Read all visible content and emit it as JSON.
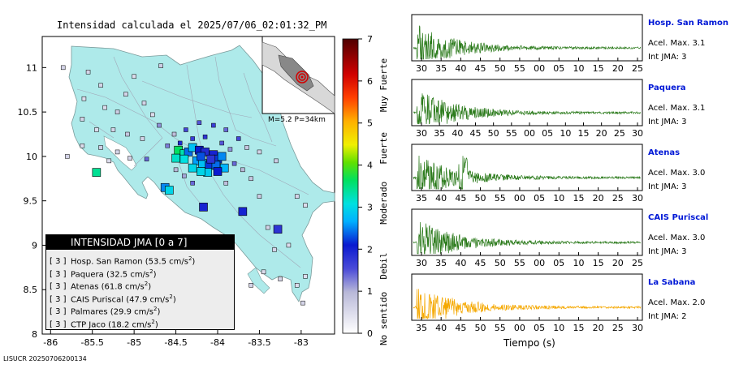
{
  "map": {
    "title": "Intensidad calculada el 2025/07/06_02:01:32_PM",
    "lon_ticks": [
      "-86",
      "-85.5",
      "-85",
      "-84.5",
      "-84",
      "-83.5",
      "-83"
    ],
    "lat_ticks": [
      "11",
      "10.5",
      "10",
      "9.5",
      "9",
      "8.5",
      "8"
    ],
    "lon_range": [
      -86.1,
      -82.6
    ],
    "lat_range": [
      8.0,
      11.35
    ],
    "inset_label": "M=5.2 P=34km",
    "legend": {
      "title": "INTENSIDAD JMA [0 a 7]",
      "entries": [
        {
          "grade": "[ 3 ]",
          "station": "Hosp. San Ramon",
          "pga": "(53.5 cm/s",
          "sup": "2",
          ")": ")"
        },
        {
          "grade": "[ 3 ]",
          "station": "Paquera",
          "pga": "(32.5 cm/s",
          "sup": "2",
          ")": ")"
        },
        {
          "grade": "[ 3 ]",
          "station": "Atenas",
          "pga": "(61.8 cm/s",
          "sup": "2",
          ")": ")"
        },
        {
          "grade": "[ 3 ]",
          "station": "CAIS Puriscal",
          "pga": "(47.9 cm/s",
          "sup": "2",
          ")": ")"
        },
        {
          "grade": "[ 3 ]",
          "station": "Palmares",
          "pga": "(29.9 cm/s",
          "sup": "2",
          ")": ")"
        },
        {
          "grade": "[ 3 ]",
          "station": "CTP Jaco",
          "pga": "(18.2 cm/s",
          "sup": "2",
          ")": ")"
        }
      ]
    },
    "colorbar": {
      "ticks": [
        "0",
        "1",
        "2",
        "3",
        "4",
        "5",
        "6",
        "7"
      ],
      "labels": [
        "No sentido",
        "Debil",
        "Moderado",
        "Fuerte",
        "Muy Fuerte"
      ]
    },
    "footer": "LISUCR 20250706200134"
  },
  "stations_big": [
    {
      "lon": -84.47,
      "lat": 10.07,
      "i": 3.6
    },
    {
      "lon": -84.4,
      "lat": 10.03,
      "i": 3.3
    },
    {
      "lon": -84.35,
      "lat": 10.05,
      "i": 2.4
    },
    {
      "lon": -84.3,
      "lat": 10.1,
      "i": 2.8
    },
    {
      "lon": -84.22,
      "lat": 10.07,
      "i": 2.1
    },
    {
      "lon": -84.15,
      "lat": 10.05,
      "i": 1.9
    },
    {
      "lon": -84.05,
      "lat": 10.02,
      "i": 2.0
    },
    {
      "lon": -84.0,
      "lat": 9.97,
      "i": 2.2
    },
    {
      "lon": -83.95,
      "lat": 10.0,
      "i": 2.5
    },
    {
      "lon": -84.25,
      "lat": 9.95,
      "i": 2.6
    },
    {
      "lon": -84.18,
      "lat": 9.92,
      "i": 2.8
    },
    {
      "lon": -84.1,
      "lat": 9.9,
      "i": 2.2
    },
    {
      "lon": -84.02,
      "lat": 9.9,
      "i": 2.4
    },
    {
      "lon": -83.92,
      "lat": 9.87,
      "i": 2.7
    },
    {
      "lon": -84.3,
      "lat": 9.87,
      "i": 3.0
    },
    {
      "lon": -84.4,
      "lat": 9.97,
      "i": 3.1
    },
    {
      "lon": -84.5,
      "lat": 9.98,
      "i": 3.2
    },
    {
      "lon": -84.12,
      "lat": 9.82,
      "i": 2.9
    },
    {
      "lon": -84.2,
      "lat": 9.83,
      "i": 3.0
    },
    {
      "lon": -84.0,
      "lat": 9.83,
      "i": 2.1
    },
    {
      "lon": -84.08,
      "lat": 9.97,
      "i": 1.8
    },
    {
      "lon": -84.2,
      "lat": 10.0,
      "i": 2.3
    },
    {
      "lon": -85.45,
      "lat": 9.82,
      "i": 3.4
    },
    {
      "lon": -84.63,
      "lat": 9.65,
      "i": 2.5
    },
    {
      "lon": -84.58,
      "lat": 9.62,
      "i": 3.0
    },
    {
      "lon": -84.17,
      "lat": 9.43,
      "i": 2.0
    },
    {
      "lon": -83.7,
      "lat": 9.38,
      "i": 2.0
    },
    {
      "lon": -83.28,
      "lat": 9.18,
      "i": 1.8
    }
  ],
  "stations_small": [
    {
      "lon": -85.85,
      "lat": 11.0,
      "i": 0.6
    },
    {
      "lon": -85.0,
      "lat": 10.9,
      "i": 0.5
    },
    {
      "lon": -85.55,
      "lat": 10.95,
      "i": 0.6
    },
    {
      "lon": -84.68,
      "lat": 11.02,
      "i": 0.7
    },
    {
      "lon": -85.4,
      "lat": 10.8,
      "i": 0.6
    },
    {
      "lon": -85.1,
      "lat": 10.7,
      "i": 0.6
    },
    {
      "lon": -85.6,
      "lat": 10.65,
      "i": 0.5
    },
    {
      "lon": -85.35,
      "lat": 10.55,
      "i": 0.5
    },
    {
      "lon": -85.2,
      "lat": 10.5,
      "i": 0.7
    },
    {
      "lon": -84.88,
      "lat": 10.6,
      "i": 0.6
    },
    {
      "lon": -84.78,
      "lat": 10.47,
      "i": 0.5
    },
    {
      "lon": -85.62,
      "lat": 10.42,
      "i": 0.6
    },
    {
      "lon": -85.45,
      "lat": 10.3,
      "i": 0.5
    },
    {
      "lon": -85.25,
      "lat": 10.3,
      "i": 0.6
    },
    {
      "lon": -85.62,
      "lat": 10.12,
      "i": 0.5
    },
    {
      "lon": -85.8,
      "lat": 10.0,
      "i": 0.6
    },
    {
      "lon": -85.4,
      "lat": 10.1,
      "i": 0.7
    },
    {
      "lon": -85.08,
      "lat": 10.25,
      "i": 0.8
    },
    {
      "lon": -84.9,
      "lat": 10.2,
      "i": 0.6
    },
    {
      "lon": -85.2,
      "lat": 10.05,
      "i": 0.6
    },
    {
      "lon": -85.3,
      "lat": 9.95,
      "i": 0.5
    },
    {
      "lon": -85.05,
      "lat": 9.98,
      "i": 0.6
    },
    {
      "lon": -84.85,
      "lat": 9.97,
      "i": 1.4
    },
    {
      "lon": -84.7,
      "lat": 10.35,
      "i": 1.2
    },
    {
      "lon": -84.52,
      "lat": 10.25,
      "i": 0.9
    },
    {
      "lon": -84.38,
      "lat": 10.3,
      "i": 1.6
    },
    {
      "lon": -84.22,
      "lat": 10.38,
      "i": 1.5
    },
    {
      "lon": -84.05,
      "lat": 10.35,
      "i": 1.7
    },
    {
      "lon": -83.9,
      "lat": 10.3,
      "i": 1.4
    },
    {
      "lon": -83.75,
      "lat": 10.2,
      "i": 1.6
    },
    {
      "lon": -83.65,
      "lat": 10.1,
      "i": 0.8
    },
    {
      "lon": -83.5,
      "lat": 10.05,
      "i": 0.6
    },
    {
      "lon": -83.3,
      "lat": 9.95,
      "i": 0.7
    },
    {
      "lon": -84.6,
      "lat": 10.12,
      "i": 1.3
    },
    {
      "lon": -84.45,
      "lat": 10.15,
      "i": 1.9
    },
    {
      "lon": -84.3,
      "lat": 10.2,
      "i": 1.7
    },
    {
      "lon": -84.15,
      "lat": 10.22,
      "i": 1.8
    },
    {
      "lon": -83.95,
      "lat": 10.15,
      "i": 1.5
    },
    {
      "lon": -83.85,
      "lat": 10.08,
      "i": 1.2
    },
    {
      "lon": -83.8,
      "lat": 9.92,
      "i": 1.4
    },
    {
      "lon": -83.7,
      "lat": 9.85,
      "i": 1.0
    },
    {
      "lon": -83.6,
      "lat": 9.75,
      "i": 0.8
    },
    {
      "lon": -83.05,
      "lat": 9.55,
      "i": 0.6
    },
    {
      "lon": -82.95,
      "lat": 9.45,
      "i": 0.5
    },
    {
      "lon": -84.5,
      "lat": 9.85,
      "i": 1.0
    },
    {
      "lon": -84.4,
      "lat": 9.78,
      "i": 1.1
    },
    {
      "lon": -84.3,
      "lat": 9.7,
      "i": 1.4
    },
    {
      "lon": -83.9,
      "lat": 9.7,
      "i": 0.9
    },
    {
      "lon": -83.5,
      "lat": 9.55,
      "i": 0.7
    },
    {
      "lon": -83.4,
      "lat": 9.2,
      "i": 0.6
    },
    {
      "lon": -83.15,
      "lat": 9.0,
      "i": 0.5
    },
    {
      "lon": -83.32,
      "lat": 8.95,
      "i": 0.6
    },
    {
      "lon": -83.45,
      "lat": 8.7,
      "i": 0.5
    },
    {
      "lon": -83.25,
      "lat": 8.62,
      "i": 0.6
    },
    {
      "lon": -83.05,
      "lat": 8.55,
      "i": 0.5
    },
    {
      "lon": -83.6,
      "lat": 8.55,
      "i": 0.6
    },
    {
      "lon": -82.95,
      "lat": 8.65,
      "i": 0.5
    },
    {
      "lon": -82.98,
      "lat": 8.35,
      "i": 0.6
    }
  ],
  "waveforms": {
    "time_label": "Tiempo (s)",
    "panels": [
      {
        "station": "Hosp. San Ramon",
        "accel": "Acel. Max. 3.1",
        "int": "Int JMA: 3",
        "ticks": [
          "30",
          "35",
          "40",
          "45",
          "50",
          "55",
          "00",
          "05",
          "10",
          "15",
          "20",
          "25"
        ],
        "color": "#2a7a1a",
        "seed": 1,
        "burst": 0.05
      },
      {
        "station": "Paquera",
        "accel": "Acel. Max. 3.1",
        "int": "Int JMA: 3",
        "ticks": [
          "30",
          "35",
          "40",
          "45",
          "50",
          "55",
          "00",
          "05",
          "10",
          "15",
          "20",
          "25",
          "30"
        ],
        "color": "#2a7a1a",
        "seed": 2,
        "burst": 0.03
      },
      {
        "station": "Atenas",
        "accel": "Acel. Max. 3.0",
        "int": "Int JMA: 3",
        "ticks": [
          "35",
          "40",
          "45",
          "50",
          "55",
          "00",
          "05",
          "10",
          "15",
          "20",
          "25",
          "30"
        ],
        "color": "#2a7a1a",
        "seed": 3,
        "burst": 0.22
      },
      {
        "station": "CAIS Puriscal",
        "accel": "Acel. Max. 3.0",
        "int": "Int JMA: 3",
        "ticks": [
          "30",
          "35",
          "40",
          "45",
          "50",
          "55",
          "00",
          "05",
          "10",
          "15",
          "20",
          "25"
        ],
        "color": "#2a7a1a",
        "seed": 4,
        "burst": 0.04
      },
      {
        "station": "La Sabana",
        "accel": "Acel. Max. 2.0",
        "int": "Int JMA: 2",
        "ticks": [
          "35",
          "40",
          "45",
          "50",
          "55",
          "00",
          "05",
          "10",
          "15",
          "20",
          "25",
          "30"
        ],
        "color": "#f5a800",
        "seed": 5,
        "burst": 0.02
      }
    ]
  }
}
